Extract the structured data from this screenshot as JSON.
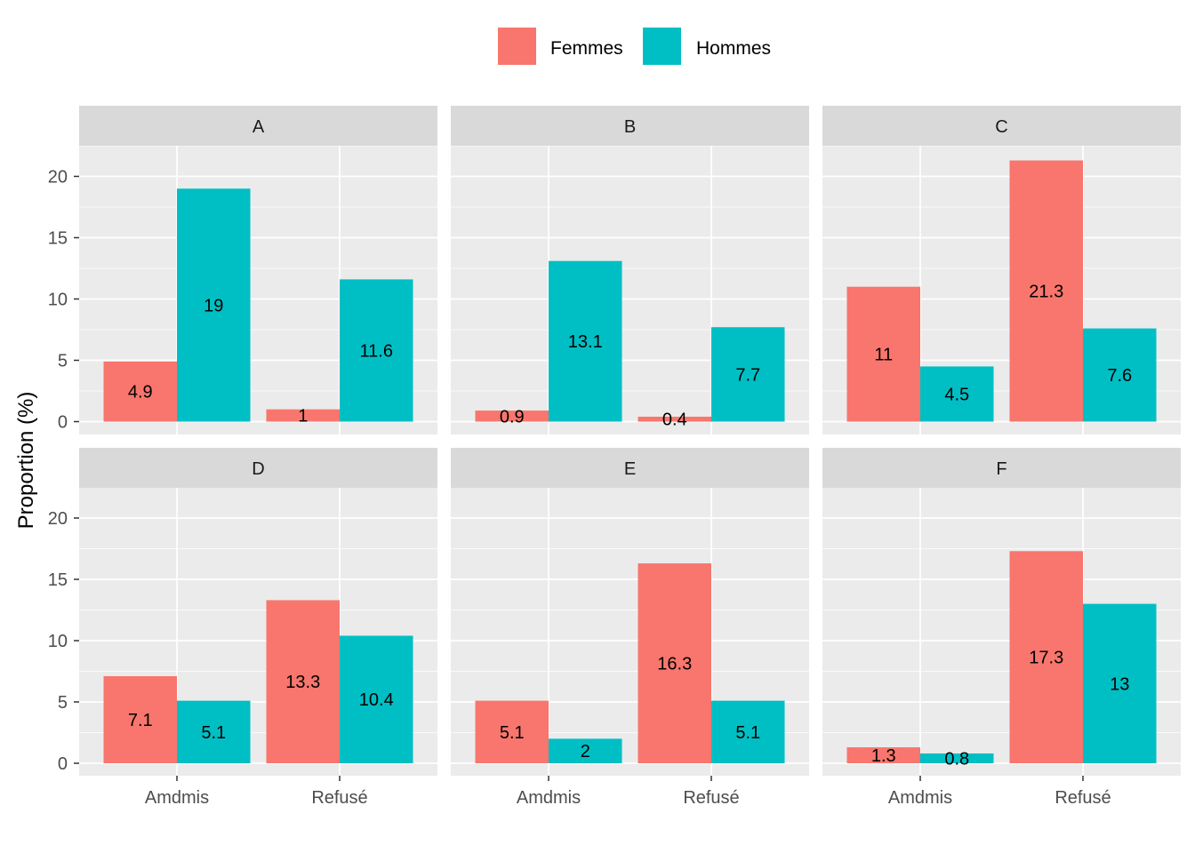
{
  "chart_data": {
    "type": "bar",
    "ylabel": "Proportion (%)",
    "ylim": [
      0,
      23
    ],
    "yticks": [
      0,
      5,
      10,
      15,
      20
    ],
    "categories": [
      "Amdmis",
      "Refusé"
    ],
    "legend": {
      "position": "top",
      "entries": [
        "Femmes",
        "Hommes"
      ]
    },
    "colors": {
      "Femmes": "#F8766D",
      "Hommes": "#00BFC4"
    },
    "grid": true,
    "panels": [
      {
        "label": "A",
        "series": [
          {
            "name": "Femmes",
            "values": [
              4.9,
              1
            ]
          },
          {
            "name": "Hommes",
            "values": [
              19,
              11.6
            ]
          }
        ]
      },
      {
        "label": "B",
        "series": [
          {
            "name": "Femmes",
            "values": [
              0.9,
              0.4
            ]
          },
          {
            "name": "Hommes",
            "values": [
              13.1,
              7.7
            ]
          }
        ]
      },
      {
        "label": "C",
        "series": [
          {
            "name": "Femmes",
            "values": [
              11,
              21.3
            ]
          },
          {
            "name": "Hommes",
            "values": [
              4.5,
              7.6
            ]
          }
        ]
      },
      {
        "label": "D",
        "series": [
          {
            "name": "Femmes",
            "values": [
              7.1,
              13.3
            ]
          },
          {
            "name": "Hommes",
            "values": [
              5.1,
              10.4
            ]
          }
        ]
      },
      {
        "label": "E",
        "series": [
          {
            "name": "Femmes",
            "values": [
              5.1,
              16.3
            ]
          },
          {
            "name": "Hommes",
            "values": [
              2,
              5.1
            ]
          }
        ]
      },
      {
        "label": "F",
        "series": [
          {
            "name": "Femmes",
            "values": [
              1.3,
              17.3
            ]
          },
          {
            "name": "Hommes",
            "values": [
              0.8,
              13
            ]
          }
        ]
      }
    ]
  }
}
